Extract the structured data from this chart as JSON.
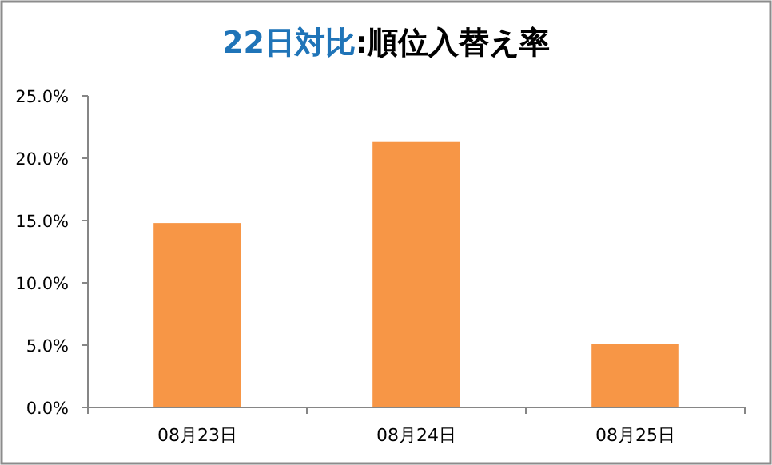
{
  "chart_data": {
    "type": "bar",
    "title": "22日対比:順位入替え率",
    "categories": [
      "08月23日",
      "08月24日",
      "08月25日"
    ],
    "values": [
      14.8,
      21.3,
      5.1
    ],
    "color": "#f79646",
    "ylim": [
      0,
      25
    ],
    "yticks": [
      {
        "value": 0,
        "label": "0.0%"
      },
      {
        "value": 5,
        "label": "5.0%"
      },
      {
        "value": 10,
        "label": "10.0%"
      },
      {
        "value": 15,
        "label": "15.0%"
      },
      {
        "value": 20,
        "label": "20.0%"
      },
      {
        "value": 25,
        "label": "25.0%"
      }
    ],
    "grid": false
  }
}
